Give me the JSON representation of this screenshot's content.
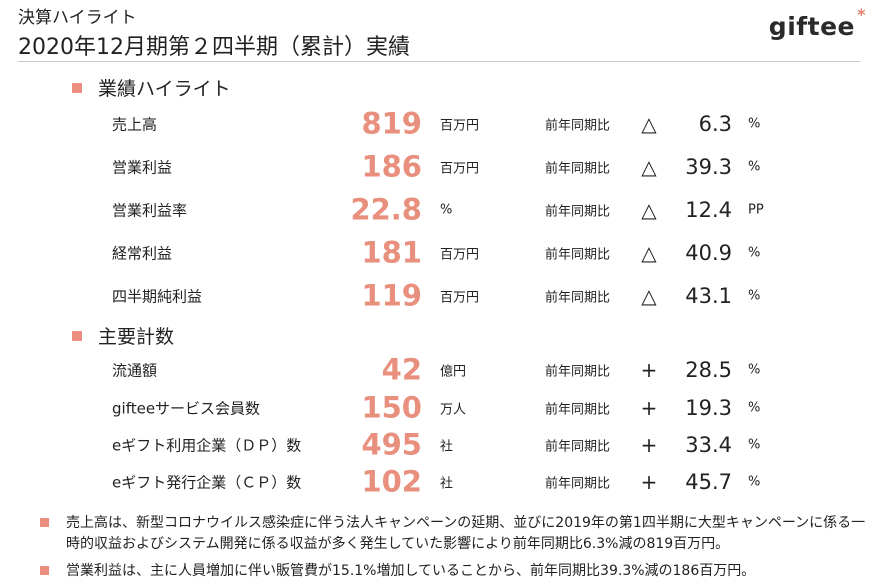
{
  "header": {
    "subtitle": "決算ハイライト",
    "title": "2020年12月期第２四半期（累計）実績",
    "logo_text": "giftee",
    "logo_mark": "*"
  },
  "colors": {
    "accent": "#e8907d",
    "bullet": "#ea8e7d",
    "text": "#222222",
    "rule": "#c8c8c8"
  },
  "highlights": {
    "heading": "業績ハイライト",
    "rows": [
      {
        "label": "売上高",
        "value": "819",
        "unit": "百万円",
        "compare": "前年同期比",
        "sign": "△",
        "change": "6.3",
        "change_unit": "%"
      },
      {
        "label": "営業利益",
        "value": "186",
        "unit": "百万円",
        "compare": "前年同期比",
        "sign": "△",
        "change": "39.3",
        "change_unit": "%"
      },
      {
        "label": "営業利益率",
        "value": "22.8",
        "unit": "%",
        "compare": "前年同期比",
        "sign": "△",
        "change": "12.4",
        "change_unit": "PP"
      },
      {
        "label": "経常利益",
        "value": "181",
        "unit": "百万円",
        "compare": "前年同期比",
        "sign": "△",
        "change": "40.9",
        "change_unit": "%"
      },
      {
        "label": "四半期純利益",
        "value": "119",
        "unit": "百万円",
        "compare": "前年同期比",
        "sign": "△",
        "change": "43.1",
        "change_unit": "%"
      }
    ]
  },
  "kpis": {
    "heading": "主要計数",
    "rows": [
      {
        "label": "流通額",
        "value": "42",
        "unit": "億円",
        "compare": "前年同期比",
        "sign": "+",
        "change": "28.5",
        "change_unit": "%"
      },
      {
        "label": "gifteeサービス会員数",
        "value": "150",
        "unit": "万人",
        "compare": "前年同期比",
        "sign": "+",
        "change": "19.3",
        "change_unit": "%"
      },
      {
        "label": "eギフト利用企業（ＤＰ）数",
        "value": "495",
        "unit": "社",
        "compare": "前年同期比",
        "sign": "+",
        "change": "33.4",
        "change_unit": "%"
      },
      {
        "label": "eギフト発行企業（ＣＰ）数",
        "value": "102",
        "unit": "社",
        "compare": "前年同期比",
        "sign": "+",
        "change": "45.7",
        "change_unit": "%"
      }
    ]
  },
  "notes": [
    "売上高は、新型コロナウイルス感染症に伴う法人キャンペーンの延期、並びに2019年の第1四半期に大型キャンペーンに係る一時的収益およびシステム開発に係る収益が多く発生していた影響により前年同期比6.3%減の819百万円。",
    "営業利益は、主に人員増加に伴い販管費が15.1%増加していることから、前年同期比39.3%減の186百万円。"
  ]
}
